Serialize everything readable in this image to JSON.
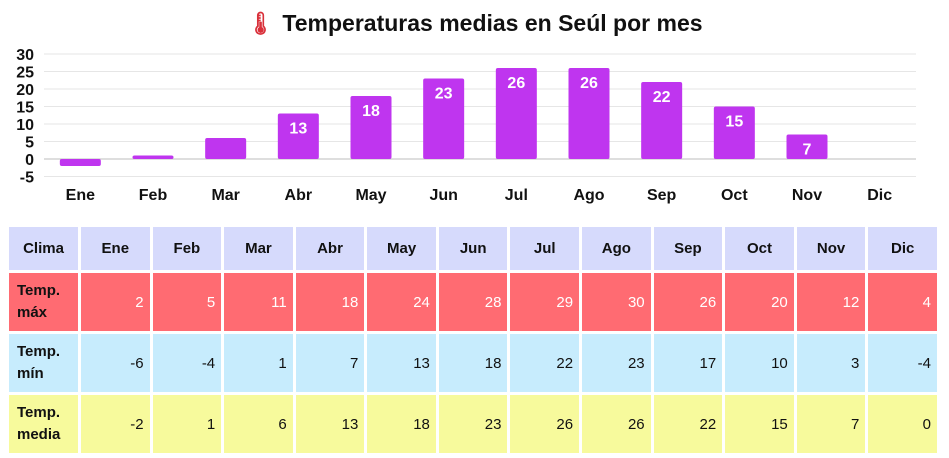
{
  "title": "Temperaturas medias en Seúl por mes",
  "title_icon": "thermometer-icon",
  "chart_data": {
    "type": "bar",
    "title": "Temperaturas medias en Seúl por mes",
    "categories": [
      "Ene",
      "Feb",
      "Mar",
      "Abr",
      "May",
      "Jun",
      "Jul",
      "Ago",
      "Sep",
      "Oct",
      "Nov",
      "Dic"
    ],
    "values": [
      -2,
      1,
      6,
      13,
      18,
      23,
      26,
      26,
      22,
      15,
      7,
      0
    ],
    "data_labels": [
      "",
      "",
      "",
      "13",
      "18",
      "23",
      "26",
      "26",
      "22",
      "15",
      "7",
      ""
    ],
    "ylim": [
      -5,
      30
    ],
    "yticks": [
      30,
      25,
      20,
      15,
      10,
      5,
      0,
      -5
    ],
    "xlabel": "",
    "ylabel": "",
    "grid": true,
    "bar_color": "#bf35ef"
  },
  "table": {
    "header_label": "Clima",
    "months": [
      "Ene",
      "Feb",
      "Mar",
      "Abr",
      "May",
      "Jun",
      "Jul",
      "Ago",
      "Sep",
      "Oct",
      "Nov",
      "Dic"
    ],
    "rows": [
      {
        "key": "max",
        "label_line1": "Temp.",
        "label_line2": "máx",
        "values": [
          "2",
          "5",
          "11",
          "18",
          "24",
          "28",
          "29",
          "30",
          "26",
          "20",
          "12",
          "4"
        ]
      },
      {
        "key": "min",
        "label_line1": "Temp.",
        "label_line2": "mín",
        "values": [
          "-6",
          "-4",
          "1",
          "7",
          "13",
          "18",
          "22",
          "23",
          "17",
          "10",
          "3",
          "-4"
        ]
      },
      {
        "key": "avg",
        "label_line1": "Temp.",
        "label_line2": "media",
        "values": [
          "-2",
          "1",
          "6",
          "13",
          "18",
          "23",
          "26",
          "26",
          "22",
          "15",
          "7",
          "0"
        ]
      }
    ],
    "colors": {
      "header": "#d6dafc",
      "max": "#ff6b72",
      "min": "#c7ecfd",
      "avg": "#f7fa9c"
    }
  }
}
